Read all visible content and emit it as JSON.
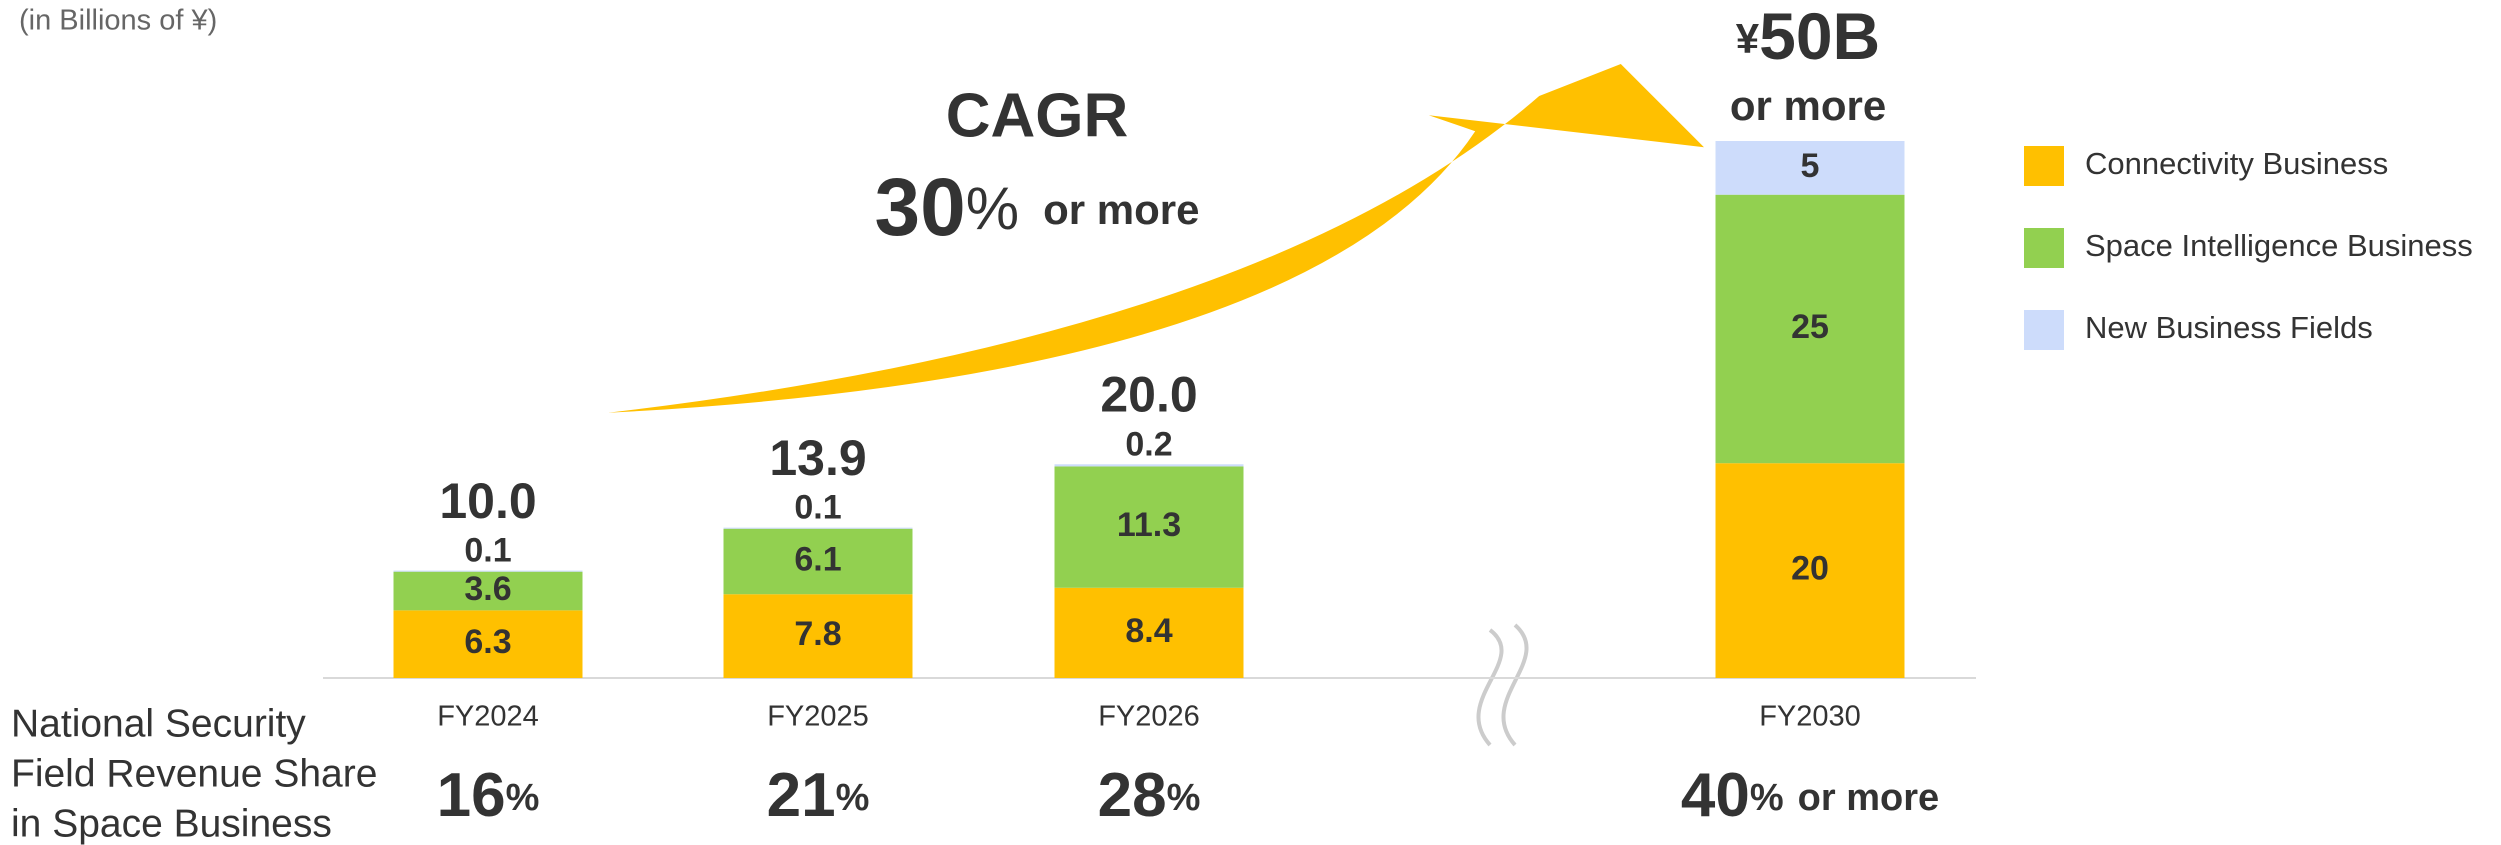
{
  "chart_data": {
    "type": "stacked_bar",
    "subtitle": "(in Billions of ¥)",
    "categories": [
      "FY2024",
      "FY2025",
      "FY2026",
      "FY2030"
    ],
    "series": [
      {
        "name": "Connectivity Business",
        "color": "#ffc000",
        "values": [
          6.3,
          7.8,
          8.4,
          20
        ]
      },
      {
        "name": "Space Intelligence Business",
        "color": "#92d050",
        "values": [
          3.6,
          6.1,
          11.3,
          25
        ]
      },
      {
        "name": "New Business Fields",
        "color": "#cddcfb",
        "values": [
          0.1,
          0.1,
          0.2,
          5
        ]
      }
    ],
    "totals": {
      "values": [
        10,
        13.9,
        20
      ],
      "value_labels": [
        "10.0",
        "13.9",
        "20.0"
      ]
    },
    "fy2030_total": {
      "currency": "¥",
      "value": 50,
      "unit": "B",
      "qualifier": "or more"
    },
    "ylim": [
      0,
      50
    ],
    "axis_break": true,
    "legend": "right",
    "cagr": {
      "label": "CAGR",
      "value": 30,
      "unit": "%",
      "qualifier": "or more"
    },
    "share": {
      "label_lines": [
        "National Security",
        "Field Revenue Share",
        "in Space Business"
      ],
      "values": [
        16,
        21,
        28,
        40
      ],
      "unit": "%",
      "last_qualifier": "or more"
    }
  }
}
